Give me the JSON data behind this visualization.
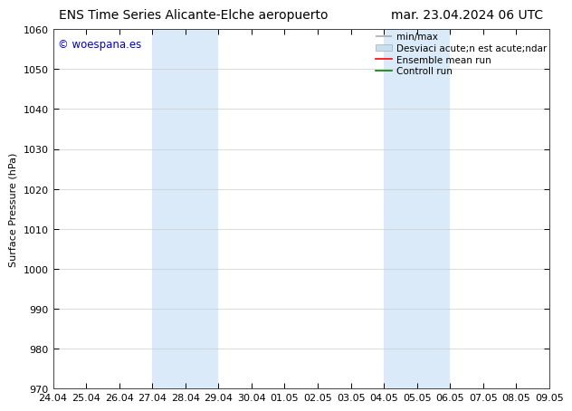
{
  "title_left": "ENS Time Series Alicante-Elche aeropuerto",
  "title_right": "mar. 23.04.2024 06 UTC",
  "ylabel": "Surface Pressure (hPa)",
  "ylim": [
    970,
    1060
  ],
  "yticks": [
    970,
    980,
    990,
    1000,
    1010,
    1020,
    1030,
    1040,
    1050,
    1060
  ],
  "xtick_labels": [
    "24.04",
    "25.04",
    "26.04",
    "27.04",
    "28.04",
    "29.04",
    "30.04",
    "01.05",
    "02.05",
    "03.05",
    "04.05",
    "05.05",
    "06.05",
    "07.05",
    "08.05",
    "09.05"
  ],
  "shaded_regions": [
    {
      "xstart": 3,
      "xend": 5,
      "color": "#daeaf8"
    },
    {
      "xstart": 10,
      "xend": 12,
      "color": "#daeaf8"
    }
  ],
  "watermark": "© woespana.es",
  "watermark_color": "#0000cc",
  "legend_label_1": "min/max",
  "legend_label_2": "Desviaci acute;n est acute;ndar",
  "legend_label_3": "Ensemble mean run",
  "legend_label_4": "Controll run",
  "legend_color_1": "#aaaaaa",
  "legend_color_2": "#c8dff0",
  "legend_color_3": "red",
  "legend_color_4": "green",
  "bg_color": "#ffffff",
  "plot_bg_color": "#ffffff",
  "title_fontsize": 10,
  "axis_label_fontsize": 8,
  "tick_fontsize": 8,
  "legend_fontsize": 7.5
}
